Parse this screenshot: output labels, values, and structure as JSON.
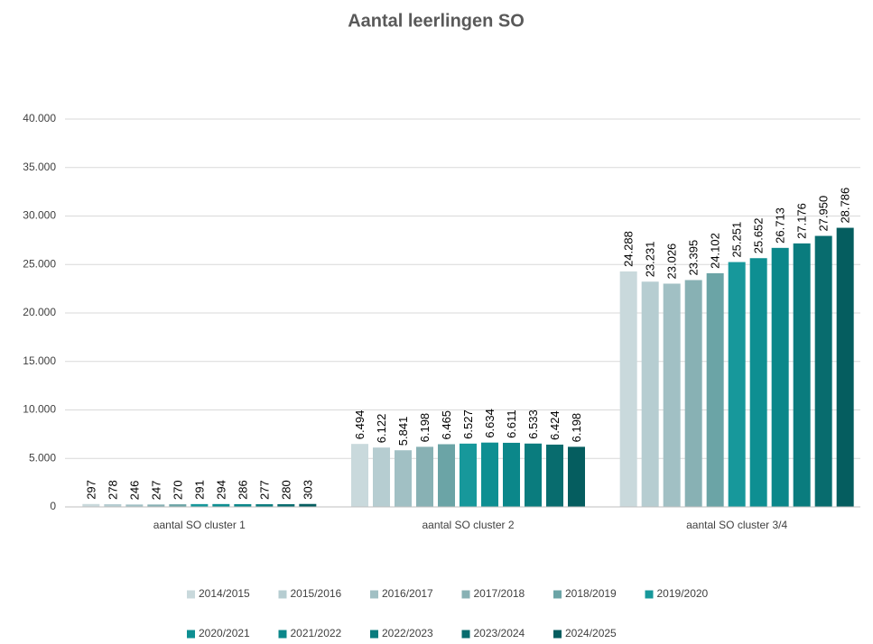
{
  "chart_data": {
    "type": "bar",
    "title": "Aantal leerlingen SO",
    "categories": [
      "aantal SO cluster 1",
      "aantal SO cluster 2",
      "aantal SO cluster 3/4"
    ],
    "series": [
      {
        "name": "2014/2015",
        "color": "#c9d9dc",
        "values": [
          297,
          6494,
          24288
        ],
        "value_labels": [
          "297",
          "6.494",
          "24.288"
        ]
      },
      {
        "name": "2015/2016",
        "color": "#b6cdd1",
        "values": [
          278,
          6122,
          23231
        ],
        "value_labels": [
          "278",
          "6.122",
          "23.231"
        ]
      },
      {
        "name": "2016/2017",
        "color": "#a1c0c4",
        "values": [
          246,
          5841,
          23026
        ],
        "value_labels": [
          "246",
          "5.841",
          "23.026"
        ]
      },
      {
        "name": "2017/2018",
        "color": "#88b1b4",
        "values": [
          247,
          6198,
          23395
        ],
        "value_labels": [
          "247",
          "6.198",
          "23.395"
        ]
      },
      {
        "name": "2018/2019",
        "color": "#6ba4a6",
        "values": [
          270,
          6465,
          24102
        ],
        "value_labels": [
          "270",
          "6.465",
          "24.102"
        ]
      },
      {
        "name": "2019/2020",
        "color": "#17989b",
        "values": [
          291,
          6527,
          25251
        ],
        "value_labels": [
          "291",
          "6.527",
          "25.251"
        ]
      },
      {
        "name": "2020/2021",
        "color": "#0e8f92",
        "values": [
          294,
          6634,
          25652
        ],
        "value_labels": [
          "294",
          "6.634",
          "25.652"
        ]
      },
      {
        "name": "2021/2022",
        "color": "#0b878a",
        "values": [
          286,
          6611,
          26713
        ],
        "value_labels": [
          "286",
          "6.611",
          "26.713"
        ]
      },
      {
        "name": "2022/2023",
        "color": "#0a7c7e",
        "values": [
          277,
          6533,
          27176
        ],
        "value_labels": [
          "277",
          "6.533",
          "27.176"
        ]
      },
      {
        "name": "2023/2024",
        "color": "#086c6e",
        "values": [
          280,
          6424,
          27950
        ],
        "value_labels": [
          "280",
          "6.424",
          "27.950"
        ]
      },
      {
        "name": "2024/2025",
        "color": "#055d5f",
        "values": [
          303,
          6198,
          28786
        ],
        "value_labels": [
          "303",
          "6.198",
          "28.786"
        ]
      }
    ],
    "ylim": [
      0,
      40000
    ],
    "yticks": [
      0,
      {
        "value": 5000,
        "label": "5.000"
      },
      {
        "value": 10000,
        "label": "10.000"
      },
      {
        "value": 15000,
        "label": "15.000"
      },
      {
        "value": 20000,
        "label": "20.000"
      },
      {
        "value": 25000,
        "label": "25.000"
      },
      {
        "value": 30000,
        "label": "30.000"
      },
      {
        "value": 35000,
        "label": "35.000"
      },
      {
        "value": 40000,
        "label": "40.000"
      }
    ],
    "grid": true,
    "legend": "bottom"
  }
}
